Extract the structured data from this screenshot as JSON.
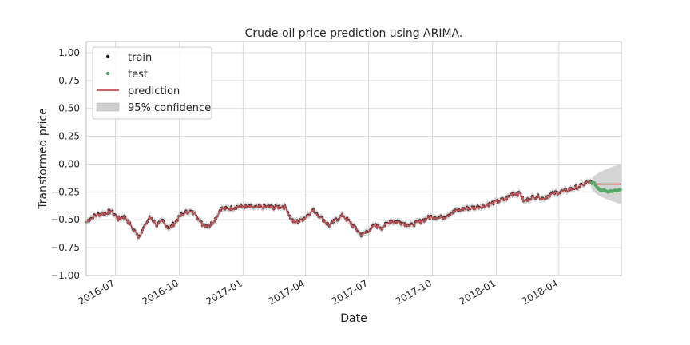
{
  "chart_data": {
    "type": "line",
    "title": "Crude oil price prediction using ARIMA.",
    "xlabel": "Date",
    "ylabel": "Transformed price",
    "x_range": [
      "2016-05-20",
      "2018-06-30"
    ],
    "ylim": [
      -1.0,
      1.1
    ],
    "y_ticks": [
      -1.0,
      -0.75,
      -0.5,
      -0.25,
      0.0,
      0.25,
      0.5,
      0.75,
      1.0
    ],
    "y_tick_labels": [
      "−1.00",
      "−0.75",
      "−0.50",
      "−0.25",
      "0.00",
      "0.25",
      "0.50",
      "0.75",
      "1.00"
    ],
    "x_ticks": [
      "2016-07-01",
      "2016-10-01",
      "2017-01-01",
      "2017-04-01",
      "2017-07-01",
      "2017-10-01",
      "2018-01-01",
      "2018-04-01"
    ],
    "x_tick_labels": [
      "2016-07",
      "2016-10",
      "2017-01",
      "2017-04",
      "2017-07",
      "2017-10",
      "2018-01",
      "2018-04"
    ],
    "grid": true,
    "legend_position": "top-left",
    "legend": [
      {
        "label": "train",
        "kind": "point",
        "color": "#1a1a1a"
      },
      {
        "label": "test",
        "kind": "point",
        "color": "#55a868"
      },
      {
        "label": "prediction",
        "kind": "line",
        "color": "#c44e52"
      },
      {
        "label": "95% confidence",
        "kind": "band",
        "color": "#cfcfcf"
      }
    ],
    "train_knots": [
      [
        "2016-05-20",
        -0.52
      ],
      [
        "2016-06-01",
        -0.46
      ],
      [
        "2016-06-15",
        -0.44
      ],
      [
        "2016-06-25",
        -0.42
      ],
      [
        "2016-07-05",
        -0.49
      ],
      [
        "2016-07-15",
        -0.47
      ],
      [
        "2016-07-25",
        -0.57
      ],
      [
        "2016-08-03",
        -0.65
      ],
      [
        "2016-08-12",
        -0.56
      ],
      [
        "2016-08-20",
        -0.47
      ],
      [
        "2016-08-30",
        -0.55
      ],
      [
        "2016-09-07",
        -0.51
      ],
      [
        "2016-09-17",
        -0.58
      ],
      [
        "2016-09-25",
        -0.52
      ],
      [
        "2016-10-05",
        -0.45
      ],
      [
        "2016-10-15",
        -0.42
      ],
      [
        "2016-10-25",
        -0.45
      ],
      [
        "2016-11-03",
        -0.54
      ],
      [
        "2016-11-14",
        -0.55
      ],
      [
        "2016-11-22",
        -0.49
      ],
      [
        "2016-11-30",
        -0.4
      ],
      [
        "2016-12-10",
        -0.4
      ],
      [
        "2016-12-25",
        -0.38
      ],
      [
        "2017-01-05",
        -0.38
      ],
      [
        "2017-01-20",
        -0.39
      ],
      [
        "2017-02-01",
        -0.38
      ],
      [
        "2017-02-15",
        -0.39
      ],
      [
        "2017-02-25",
        -0.38
      ],
      [
        "2017-03-05",
        -0.39
      ],
      [
        "2017-03-09",
        -0.47
      ],
      [
        "2017-03-15",
        -0.52
      ],
      [
        "2017-03-25",
        -0.51
      ],
      [
        "2017-04-05",
        -0.45
      ],
      [
        "2017-04-12",
        -0.41
      ],
      [
        "2017-04-22",
        -0.47
      ],
      [
        "2017-05-05",
        -0.55
      ],
      [
        "2017-05-15",
        -0.5
      ],
      [
        "2017-05-25",
        -0.46
      ],
      [
        "2017-06-05",
        -0.53
      ],
      [
        "2017-06-15",
        -0.6
      ],
      [
        "2017-06-21",
        -0.64
      ],
      [
        "2017-07-01",
        -0.59
      ],
      [
        "2017-07-10",
        -0.55
      ],
      [
        "2017-07-20",
        -0.57
      ],
      [
        "2017-08-01",
        -0.51
      ],
      [
        "2017-08-15",
        -0.52
      ],
      [
        "2017-08-31",
        -0.55
      ],
      [
        "2017-09-15",
        -0.51
      ],
      [
        "2017-09-30",
        -0.47
      ],
      [
        "2017-10-15",
        -0.48
      ],
      [
        "2017-10-31",
        -0.43
      ],
      [
        "2017-11-15",
        -0.4
      ],
      [
        "2017-11-30",
        -0.39
      ],
      [
        "2017-12-15",
        -0.37
      ],
      [
        "2018-01-01",
        -0.34
      ],
      [
        "2018-01-15",
        -0.31
      ],
      [
        "2018-01-25",
        -0.26
      ],
      [
        "2018-02-05",
        -0.27
      ],
      [
        "2018-02-10",
        -0.34
      ],
      [
        "2018-02-20",
        -0.3
      ],
      [
        "2018-03-01",
        -0.29
      ],
      [
        "2018-03-10",
        -0.31
      ],
      [
        "2018-03-20",
        -0.27
      ],
      [
        "2018-04-01",
        -0.25
      ],
      [
        "2018-04-10",
        -0.24
      ],
      [
        "2018-04-20",
        -0.22
      ],
      [
        "2018-05-01",
        -0.2
      ],
      [
        "2018-05-10",
        -0.17
      ],
      [
        "2018-05-17",
        -0.16
      ]
    ],
    "test_points": [
      [
        "2018-05-18",
        -0.17
      ],
      [
        "2018-05-20",
        -0.165
      ],
      [
        "2018-05-22",
        -0.17
      ],
      [
        "2018-05-24",
        -0.19
      ],
      [
        "2018-05-26",
        -0.21
      ],
      [
        "2018-05-28",
        -0.22
      ],
      [
        "2018-05-30",
        -0.23
      ],
      [
        "2018-06-01",
        -0.24
      ],
      [
        "2018-06-03",
        -0.235
      ],
      [
        "2018-06-05",
        -0.23
      ],
      [
        "2018-06-07",
        -0.24
      ],
      [
        "2018-06-09",
        -0.245
      ],
      [
        "2018-06-11",
        -0.25
      ],
      [
        "2018-06-13",
        -0.245
      ],
      [
        "2018-06-15",
        -0.24
      ],
      [
        "2018-06-17",
        -0.245
      ],
      [
        "2018-06-19",
        -0.24
      ],
      [
        "2018-06-21",
        -0.235
      ],
      [
        "2018-06-23",
        -0.24
      ],
      [
        "2018-06-25",
        -0.235
      ],
      [
        "2018-06-27",
        -0.23
      ],
      [
        "2018-06-29",
        -0.23
      ]
    ],
    "forecast": {
      "start": "2018-05-17",
      "end": "2018-06-30",
      "value": -0.18,
      "ci_lower_end": -0.34,
      "ci_upper_end": -0.02
    }
  }
}
